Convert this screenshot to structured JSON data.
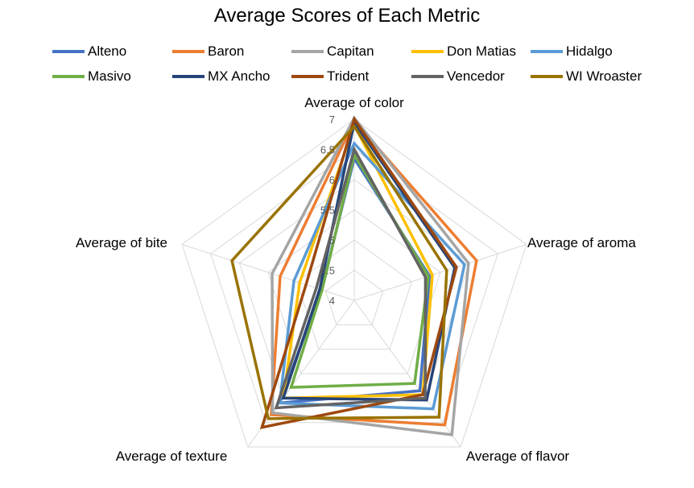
{
  "chart_data": {
    "type": "radar",
    "title": "Average Scores of Each Metric",
    "axes": [
      "Average of color",
      "Average of aroma",
      "Average of flavor",
      "Average of texture",
      "Average of bite"
    ],
    "rlim": [
      4,
      7
    ],
    "ticks": [
      "4",
      "4.5",
      "5",
      "5.5",
      "6",
      "6.5",
      "7"
    ],
    "grid": true,
    "legend_position": "top",
    "series": [
      {
        "name": "Alteno",
        "color": "#4472C4",
        "values": [
          6.35,
          5.31,
          5.85,
          6.1,
          4.57
        ]
      },
      {
        "name": "Baron",
        "color": "#ED7D31",
        "values": [
          6.97,
          6.13,
          6.55,
          6.34,
          5.29
        ]
      },
      {
        "name": "Capitan",
        "color": "#A5A5A5",
        "values": [
          7.02,
          5.99,
          6.75,
          6.3,
          5.43
        ]
      },
      {
        "name": "Don Matias",
        "color": "#FFC000",
        "values": [
          6.9,
          5.36,
          5.93,
          6.0,
          4.95
        ]
      },
      {
        "name": "Hidalgo",
        "color": "#5B9BD5",
        "values": [
          6.6,
          5.92,
          6.22,
          6.1,
          5.05
        ]
      },
      {
        "name": "Masivo",
        "color": "#70AD47",
        "values": [
          6.41,
          5.29,
          5.7,
          5.78,
          4.56
        ]
      },
      {
        "name": "MX Ancho",
        "color": "#264478",
        "values": [
          6.95,
          5.75,
          6.04,
          6.0,
          4.6
        ]
      },
      {
        "name": "Trident",
        "color": "#9E480E",
        "values": [
          7.0,
          5.78,
          5.93,
          6.6,
          4.84
        ]
      },
      {
        "name": "Vencedor",
        "color": "#636363",
        "values": [
          6.5,
          5.24,
          6.0,
          6.2,
          4.66
        ]
      },
      {
        "name": "WI Wroaster",
        "color": "#997300",
        "values": [
          6.88,
          5.61,
          6.39,
          6.42,
          6.13
        ]
      }
    ]
  }
}
